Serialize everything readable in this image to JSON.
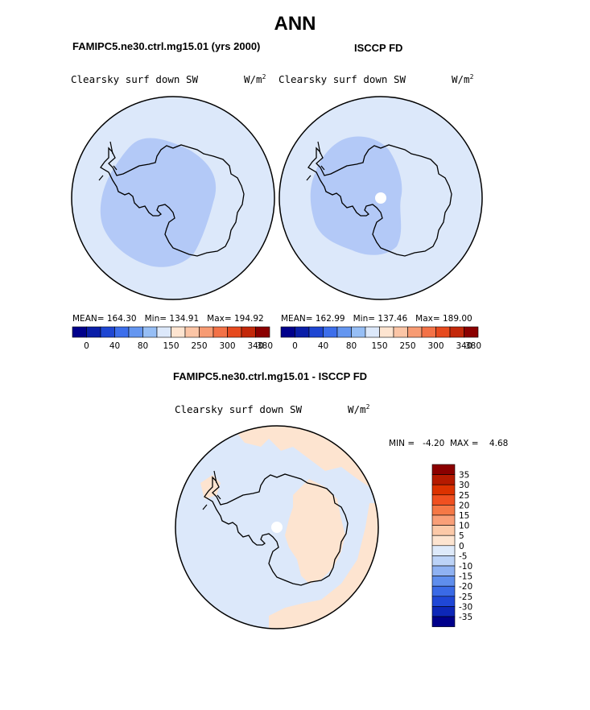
{
  "title": "ANN",
  "panels": {
    "left": {
      "case": "FAMIPC5.ne30.ctrl.mg15.01 (yrs 2000)",
      "variable": "Clearsky surf down SW",
      "units_base": "W/m",
      "units_exp": "2",
      "stats": "MEAN= 164.30   Min= 134.91   Max= 194.92"
    },
    "right": {
      "case": "ISCCP FD",
      "variable": "Clearsky surf down SW",
      "units_base": "W/m",
      "units_exp": "2",
      "stats": "MEAN= 162.99   Min= 137.46   Max= 189.00"
    },
    "diff": {
      "case": "FAMIPC5.ne30.ctrl.mg15.01 - ISCCP FD",
      "variable": "Clearsky surf down SW",
      "units_base": "W/m",
      "units_exp": "2",
      "minmax": "MIN =   -4.20  MAX =    4.68"
    }
  },
  "colorbar_abs": {
    "colors": [
      "#00008b",
      "#0a1ea8",
      "#1e46d2",
      "#3c6eeb",
      "#6496f0",
      "#96bef5",
      "#dce8fa",
      "#fde4d0",
      "#fbc5a6",
      "#f79b73",
      "#f37247",
      "#e64a1e",
      "#c3280a",
      "#8b0000"
    ],
    "labels": [
      "0",
      "40",
      "80",
      "150",
      "250",
      "300",
      "340",
      "380"
    ]
  },
  "colorbar_diff": {
    "colors": [
      "#8b0000",
      "#b51a00",
      "#dc3200",
      "#f05020",
      "#f57846",
      "#f99f78",
      "#fcc9a8",
      "#fde4d0",
      "#deeafa",
      "#bcd3f7",
      "#8fb2f2",
      "#5f8eed",
      "#3a6ae6",
      "#1f47d6",
      "#0d27b8",
      "#00008b"
    ],
    "labels": [
      "35",
      "30",
      "25",
      "20",
      "15",
      "10",
      "5",
      "0",
      "-5",
      "-10",
      "-15",
      "-20",
      "-25",
      "-30",
      "-35"
    ]
  },
  "map_colors": {
    "ocean": "#dce8fa",
    "antarctic_low": "#b3c9f7",
    "diff_positive": "#fde4d0",
    "missing": "#ffffff",
    "coast": "#000000"
  }
}
